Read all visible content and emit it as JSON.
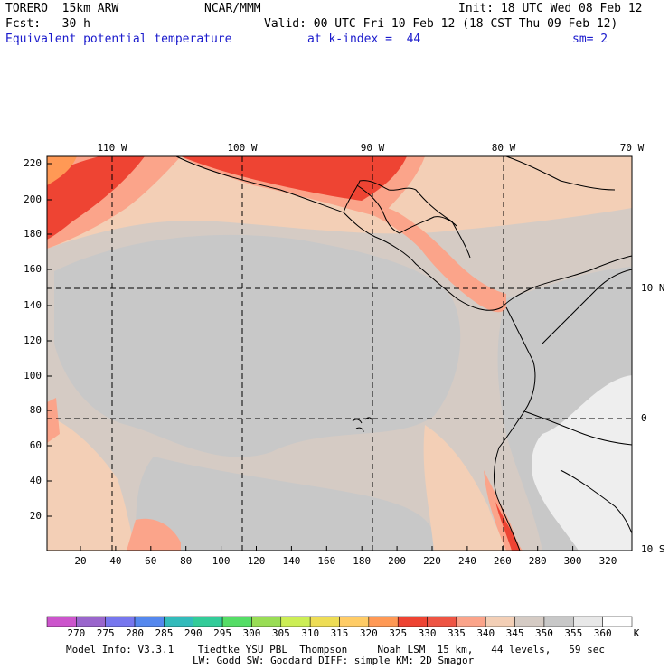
{
  "header": {
    "model": "TORERO  15km ARW",
    "center": "NCAR/MMM",
    "init": "Init: 18 UTC Wed 08 Feb 12",
    "fcst_label": "Fcst:   30 h",
    "valid": "Valid: 00 UTC Fri 10 Feb 12 (18 CST Thu 09 Feb 12)",
    "field": "Equivalent potential temperature",
    "level": "at k-index =  44",
    "smooth": "sm= 2"
  },
  "top_axis": [
    "110 W",
    "100 W",
    "90 W",
    "80 W",
    "70 W"
  ],
  "left_axis": [
    "220",
    "200",
    "180",
    "160",
    "140",
    "120",
    "100",
    "80",
    "60",
    "40",
    "20"
  ],
  "bottom_axis": [
    "20",
    "40",
    "60",
    "80",
    "100",
    "120",
    "140",
    "160",
    "180",
    "200",
    "220",
    "240",
    "260",
    "280",
    "300",
    "320"
  ],
  "right_axis": [
    "10 N",
    "0",
    "10 S"
  ],
  "colorbar": {
    "labels": [
      "270",
      "275",
      "280",
      "285",
      "290",
      "295",
      "300",
      "305",
      "310",
      "315",
      "320",
      "325",
      "330",
      "335",
      "340",
      "345",
      "350",
      "355",
      "360"
    ],
    "unit": "K",
    "colors": [
      "#cc55cc",
      "#9a66cc",
      "#7777ee",
      "#5588ee",
      "#33bbbb",
      "#33cc99",
      "#55dd66",
      "#99dd55",
      "#ccee55",
      "#eedd55",
      "#ffcc66",
      "#ff9955",
      "#ee4433",
      "#ee5544",
      "#fba48a",
      "#f3cfb6",
      "#d5cbc4",
      "#c8c8c8",
      "#e8e8e8",
      "#ffffff"
    ]
  },
  "footer": {
    "line1": "Model Info: V3.3.1    Tiedtke YSU PBL  Thompson     Noah LSM  15 km,   44 levels,   59 sec",
    "line2": "LW: Godd SW: Goddard DIFF: simple KM: 2D Smagor"
  },
  "map": {
    "bg_color": "#d5cbc4",
    "cool_color": "#c8c8c8",
    "warm_color": "#f3cfb6",
    "hot_color": "#fba48a",
    "red_color": "#ee4433",
    "orange_color": "#ff9955",
    "white_color": "#eeeeee"
  }
}
